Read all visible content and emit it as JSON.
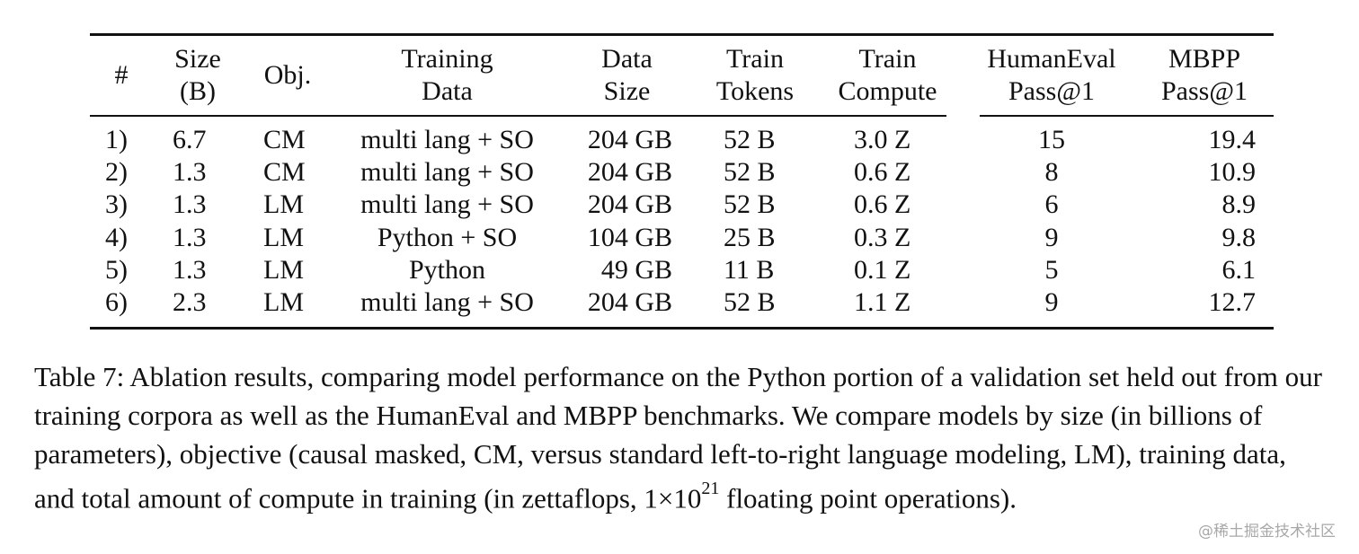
{
  "table": {
    "headers": [
      {
        "line1": "#",
        "line2": ""
      },
      {
        "line1": "Size",
        "line2": "(B)"
      },
      {
        "line1": "Obj.",
        "line2": ""
      },
      {
        "line1": "Training",
        "line2": "Data"
      },
      {
        "line1": "Data",
        "line2": "Size"
      },
      {
        "line1": "Train",
        "line2": "Tokens"
      },
      {
        "line1": "Train",
        "line2": "Compute"
      },
      {
        "line1": "HumanEval",
        "line2": "Pass@1"
      },
      {
        "line1": "MBPP",
        "line2": "Pass@1"
      }
    ],
    "rows": [
      [
        "1)",
        "6.7",
        "CM",
        "multi lang + SO",
        "204 GB",
        "52 B",
        "3.0 Z",
        "15",
        "19.4"
      ],
      [
        "2)",
        "1.3",
        "CM",
        "multi lang + SO",
        "204 GB",
        "52 B",
        "0.6 Z",
        "8",
        "10.9"
      ],
      [
        "3)",
        "1.3",
        "LM",
        "multi lang + SO",
        "204 GB",
        "52 B",
        "0.6 Z",
        "6",
        "8.9"
      ],
      [
        "4)",
        "1.3",
        "LM",
        "Python + SO",
        "104 GB",
        "25 B",
        "0.3 Z",
        "9",
        "9.8"
      ],
      [
        "5)",
        "1.3",
        "LM",
        "Python",
        "49 GB",
        "11 B",
        "0.1 Z",
        "5",
        "6.1"
      ],
      [
        "6)",
        "2.3",
        "LM",
        "multi lang + SO",
        "204 GB",
        "52 B",
        "1.1 Z",
        "9",
        "12.7"
      ]
    ]
  },
  "caption": {
    "text": "Table 7: Ablation results, comparing model performance on the Python portion of a validation set held out from our training corpora as well as the HumanEval and MBPP benchmarks. We compare models by size (in billions of parameters), objective (causal masked, CM, versus standard left-to-right language modeling, LM), training data, and total amount of compute in training (in zettaflops, 1×10",
    "superscript": "21",
    "tail": " floating point operations)."
  },
  "watermark": "@稀土掘金技术社区"
}
